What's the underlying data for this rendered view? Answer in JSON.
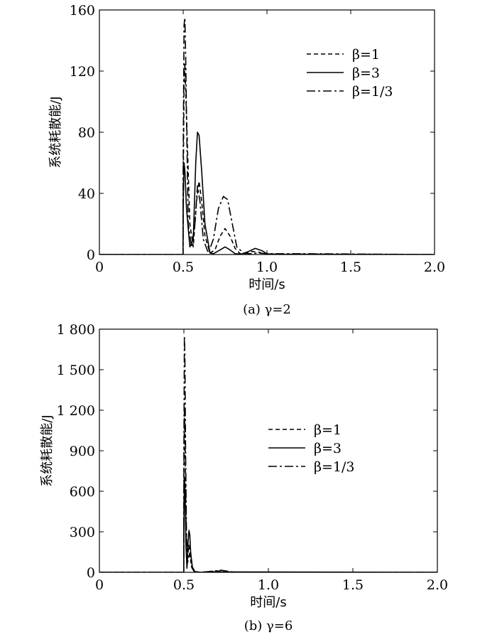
{
  "chart_data": [
    {
      "type": "line",
      "caption": "(a) γ=2",
      "xlabel": "时间/s",
      "ylabel": "系统耗散能/J",
      "xlim": [
        0,
        2.0
      ],
      "ylim": [
        0,
        160
      ],
      "xticks": [
        "0",
        "0.5",
        "1.0",
        "1.5",
        "2.0"
      ],
      "xtick_values": [
        0,
        0.5,
        1.0,
        1.5,
        2.0
      ],
      "yticks": [
        "0",
        "40",
        "80",
        "120",
        "160"
      ],
      "ytick_values": [
        0,
        40,
        80,
        120,
        160
      ],
      "legend_position": "top-right",
      "series": [
        {
          "name": "β=1",
          "dash": "dashed",
          "x": [
            0,
            0.499,
            0.5,
            0.505,
            0.51,
            0.52,
            0.54,
            0.56,
            0.58,
            0.595,
            0.61,
            0.63,
            0.66,
            0.69,
            0.72,
            0.75,
            0.78,
            0.81,
            0.84,
            0.87,
            0.91,
            0.95,
            0.99,
            1.05,
            1.2,
            2.0
          ],
          "y": [
            0,
            0,
            40,
            110,
            125,
            90,
            20,
            5,
            35,
            48,
            35,
            12,
            1,
            3,
            12,
            17,
            12,
            4,
            0.5,
            0.5,
            2,
            1.5,
            0.3,
            0.2,
            0.3,
            0
          ]
        },
        {
          "name": "β=3",
          "dash": "solid",
          "x": [
            0,
            0.499,
            0.5,
            0.505,
            0.51,
            0.52,
            0.54,
            0.56,
            0.575,
            0.585,
            0.595,
            0.61,
            0.63,
            0.66,
            0.68,
            0.72,
            0.75,
            0.78,
            0.81,
            0.85,
            0.89,
            0.93,
            0.97,
            1.0,
            1.05,
            2.0
          ],
          "y": [
            0,
            0,
            30,
            60,
            55,
            30,
            5,
            10,
            60,
            80,
            78,
            55,
            20,
            1,
            0.5,
            3,
            5,
            3,
            0.5,
            0.3,
            2,
            4,
            2.5,
            0.5,
            0.2,
            0
          ]
        },
        {
          "name": "β=1/3",
          "dash": "dashdot",
          "x": [
            0,
            0.499,
            0.5,
            0.505,
            0.51,
            0.515,
            0.52,
            0.53,
            0.55,
            0.57,
            0.585,
            0.6,
            0.62,
            0.65,
            0.68,
            0.71,
            0.74,
            0.765,
            0.79,
            0.82,
            0.86,
            0.9,
            0.95,
            1.0,
            1.2,
            2.0
          ],
          "y": [
            0,
            0,
            60,
            150,
            155,
            130,
            90,
            20,
            5,
            20,
            45,
            35,
            10,
            1,
            10,
            30,
            38,
            36,
            22,
            5,
            1,
            0.5,
            1,
            0.5,
            0.5,
            0
          ]
        }
      ]
    },
    {
      "type": "line",
      "caption": "(b) γ=6",
      "xlabel": "时间/s",
      "ylabel": "系统耗散能/J",
      "xlim": [
        0,
        2.0
      ],
      "ylim": [
        0,
        1800
      ],
      "xticks": [
        "0",
        "0.5",
        "1.0",
        "1.5",
        "2.0"
      ],
      "xtick_values": [
        0,
        0.5,
        1.0,
        1.5,
        2.0
      ],
      "yticks": [
        "0",
        "300",
        "600",
        "900",
        "1 200",
        "1 500",
        "1 800"
      ],
      "ytick_values": [
        0,
        300,
        600,
        900,
        1200,
        1500,
        1800
      ],
      "legend_position": "center-right",
      "series": [
        {
          "name": "β=1",
          "dash": "dashed",
          "x": [
            0,
            0.499,
            0.5,
            0.503,
            0.507,
            0.512,
            0.52,
            0.525,
            0.53,
            0.535,
            0.545,
            0.56,
            0.6,
            0.7,
            0.75,
            0.8,
            2.0
          ],
          "y": [
            0,
            0,
            600,
            1200,
            1000,
            400,
            60,
            150,
            200,
            160,
            40,
            5,
            0,
            10,
            5,
            0,
            0
          ]
        },
        {
          "name": "β=3",
          "dash": "solid",
          "x": [
            0,
            0.499,
            0.5,
            0.503,
            0.507,
            0.512,
            0.518,
            0.525,
            0.53,
            0.535,
            0.54,
            0.55,
            0.565,
            0.6,
            0.7,
            2.0
          ],
          "y": [
            0,
            0,
            300,
            700,
            600,
            200,
            30,
            220,
            310,
            280,
            150,
            40,
            5,
            0,
            3,
            0
          ]
        },
        {
          "name": "β=1/3",
          "dash": "dashdot",
          "x": [
            0,
            0.499,
            0.5,
            0.503,
            0.506,
            0.51,
            0.515,
            0.52,
            0.53,
            0.535,
            0.545,
            0.56,
            0.6,
            0.68,
            0.72,
            0.76,
            0.8,
            2.0
          ],
          "y": [
            0,
            0,
            900,
            1750,
            1600,
            900,
            300,
            60,
            120,
            140,
            50,
            5,
            0,
            10,
            15,
            8,
            0,
            0
          ]
        }
      ]
    }
  ]
}
